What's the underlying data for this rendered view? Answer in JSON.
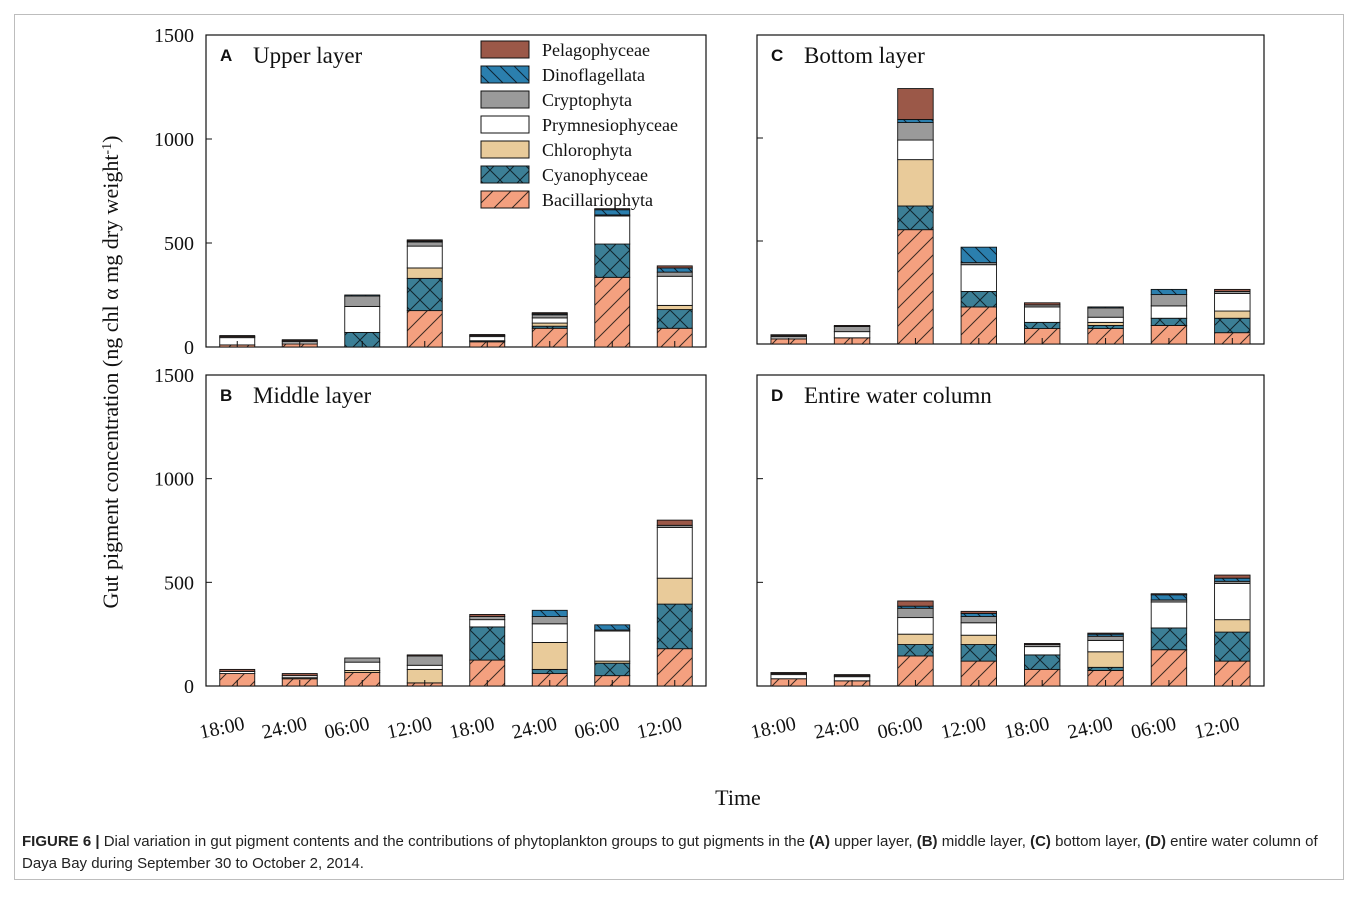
{
  "figure": {
    "y_axis_label": "Gut pigment concentration (ng chl α mg dry weight",
    "y_axis_label_sup": "-1",
    "y_axis_label_end": ")",
    "x_axis_label": "Time"
  },
  "caption": {
    "figure_label": "FIGURE 6 |",
    "text_1": " Dial variation in gut pigment contents and the contributions of phytoplankton groups to gut pigments in the ",
    "ref_a": "(A)",
    "text_2": " upper layer, ",
    "ref_b": "(B)",
    "text_3": " middle layer, ",
    "ref_c": "(C)",
    "text_4": " bottom layer, ",
    "ref_d": "(D)",
    "text_5": " entire water column of Daya Bay during September 30 to October 2, 2014."
  },
  "colors": {
    "Bacillariophyta": "#f4a07f",
    "Cyanophyceae": "#3c7f96",
    "Chlorophyta": "#e9cb9a",
    "Prymnesiophyceae": "#ffffff",
    "Cryptophyta": "#9a9a9a",
    "Dinoflagellata": "#2b7fae",
    "Pelagophyceae": "#9b5848"
  },
  "chart_data": [
    {
      "type": "bar",
      "panel": "A",
      "title": "Upper layer",
      "categories": [
        "18:00",
        "24:00",
        "06:00",
        "12:00",
        "18:00",
        "24:00",
        "06:00",
        "12:00"
      ],
      "ylim": [
        0,
        1500
      ],
      "yticks": [
        0,
        500,
        1000,
        1500
      ],
      "legend": "top-center",
      "series": [
        {
          "name": "Bacillariophyta",
          "values": [
            10,
            15,
            0,
            175,
            25,
            90,
            335,
            90
          ]
        },
        {
          "name": "Cyanophyceae",
          "values": [
            0,
            0,
            70,
            155,
            5,
            10,
            160,
            90
          ]
        },
        {
          "name": "Chlorophyta",
          "values": [
            0,
            0,
            0,
            50,
            0,
            15,
            0,
            20
          ]
        },
        {
          "name": "Prymnesiophyceae",
          "values": [
            35,
            10,
            125,
            105,
            20,
            25,
            135,
            140
          ]
        },
        {
          "name": "Cryptophyta",
          "values": [
            5,
            5,
            50,
            20,
            5,
            15,
            5,
            20
          ]
        },
        {
          "name": "Dinoflagellata",
          "values": [
            0,
            0,
            5,
            5,
            0,
            5,
            25,
            20
          ]
        },
        {
          "name": "Pelagophyceae",
          "values": [
            5,
            5,
            0,
            5,
            5,
            5,
            5,
            10
          ]
        }
      ]
    },
    {
      "type": "bar",
      "panel": "B",
      "title": "Middle layer",
      "categories": [
        "18:00",
        "24:00",
        "06:00",
        "12:00",
        "18:00",
        "24:00",
        "06:00",
        "12:00"
      ],
      "ylim": [
        0,
        1500
      ],
      "yticks": [
        0,
        500,
        1000,
        1500
      ],
      "series": [
        {
          "name": "Bacillariophyta",
          "values": [
            60,
            35,
            65,
            15,
            125,
            60,
            50,
            180
          ]
        },
        {
          "name": "Cyanophyceae",
          "values": [
            0,
            0,
            0,
            0,
            160,
            20,
            60,
            215
          ]
        },
        {
          "name": "Chlorophyta",
          "values": [
            0,
            5,
            10,
            65,
            0,
            130,
            10,
            125
          ]
        },
        {
          "name": "Prymnesiophyceae",
          "values": [
            10,
            10,
            40,
            20,
            35,
            90,
            145,
            245
          ]
        },
        {
          "name": "Cryptophyta",
          "values": [
            0,
            0,
            20,
            45,
            15,
            35,
            5,
            10
          ]
        },
        {
          "name": "Dinoflagellata",
          "values": [
            0,
            0,
            0,
            0,
            0,
            30,
            25,
            0
          ]
        },
        {
          "name": "Pelagophyceae",
          "values": [
            10,
            10,
            0,
            5,
            10,
            0,
            0,
            25
          ]
        }
      ]
    },
    {
      "type": "bar",
      "panel": "C",
      "title": "Bottom layer",
      "categories": [
        "18:00",
        "24:00",
        "06:00",
        "12:00",
        "18:00",
        "24:00",
        "06:00",
        "12:00"
      ],
      "ylim": [
        0,
        1500
      ],
      "yticks": [
        0,
        500,
        1000,
        1500
      ],
      "series": [
        {
          "name": "Bacillariophyta",
          "values": [
            25,
            30,
            555,
            180,
            75,
            75,
            90,
            55
          ]
        },
        {
          "name": "Cyanophyceae",
          "values": [
            0,
            0,
            115,
            75,
            30,
            15,
            35,
            70
          ]
        },
        {
          "name": "Chlorophyta",
          "values": [
            0,
            0,
            225,
            0,
            0,
            15,
            0,
            35
          ]
        },
        {
          "name": "Prymnesiophyceae",
          "values": [
            10,
            30,
            95,
            130,
            75,
            25,
            60,
            85
          ]
        },
        {
          "name": "Cryptophyta",
          "values": [
            5,
            25,
            85,
            10,
            10,
            45,
            55,
            10
          ]
        },
        {
          "name": "Dinoflagellata",
          "values": [
            0,
            0,
            15,
            75,
            0,
            5,
            25,
            0
          ]
        },
        {
          "name": "Pelagophyceae",
          "values": [
            5,
            5,
            150,
            0,
            10,
            0,
            0,
            10
          ]
        }
      ]
    },
    {
      "type": "bar",
      "panel": "D",
      "title": "Entire water column",
      "categories": [
        "18:00",
        "24:00",
        "06:00",
        "12:00",
        "18:00",
        "24:00",
        "06:00",
        "12:00"
      ],
      "ylim": [
        0,
        1500
      ],
      "yticks": [
        0,
        500,
        1000,
        1500
      ],
      "series": [
        {
          "name": "Bacillariophyta",
          "values": [
            35,
            25,
            145,
            120,
            80,
            75,
            175,
            120
          ]
        },
        {
          "name": "Cyanophyceae",
          "values": [
            0,
            0,
            55,
            80,
            70,
            15,
            105,
            140
          ]
        },
        {
          "name": "Chlorophyta",
          "values": [
            0,
            0,
            50,
            45,
            0,
            75,
            0,
            60
          ]
        },
        {
          "name": "Prymnesiophyceae",
          "values": [
            20,
            20,
            80,
            60,
            40,
            55,
            125,
            175
          ]
        },
        {
          "name": "Cryptophyta",
          "values": [
            5,
            5,
            45,
            30,
            10,
            20,
            10,
            10
          ]
        },
        {
          "name": "Dinoflagellata",
          "values": [
            0,
            0,
            10,
            15,
            0,
            10,
            25,
            15
          ]
        },
        {
          "name": "Pelagophyceae",
          "values": [
            5,
            5,
            25,
            10,
            5,
            5,
            5,
            15
          ]
        }
      ]
    }
  ]
}
